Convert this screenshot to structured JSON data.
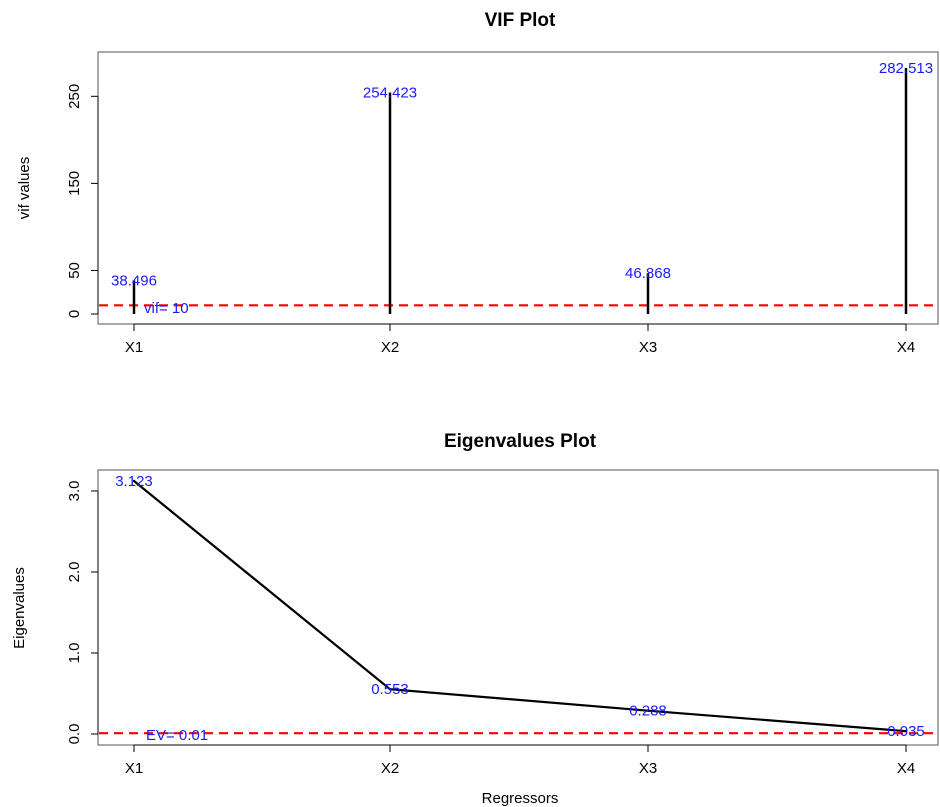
{
  "chart_data": [
    {
      "type": "bar",
      "title": "VIF Plot",
      "xlabel": "",
      "ylabel": "vif values",
      "categories": [
        "X1",
        "X2",
        "X3",
        "X4"
      ],
      "values": [
        38.496,
        254.423,
        46.868,
        282.513
      ],
      "labels": [
        "38.496",
        "254.423",
        "46.868",
        "282.513"
      ],
      "ylim": [
        0,
        282.513
      ],
      "yticks": [
        0,
        50,
        150,
        250
      ],
      "ytick_labels": [
        "0",
        "50",
        "150",
        "250"
      ],
      "reference": {
        "value": 10,
        "label": "vif= 10",
        "color": "#ff0000",
        "style": "dashed"
      },
      "bar_color": "#000000",
      "label_color": "#1a1aff"
    },
    {
      "type": "line",
      "title": "Eigenvalues Plot",
      "xlabel": "Regressors",
      "ylabel": "Eigenvalues",
      "categories": [
        "X1",
        "X2",
        "X3",
        "X4"
      ],
      "values": [
        3.123,
        0.553,
        0.288,
        0.035
      ],
      "labels": [
        "3.123",
        "0.553",
        "0.288",
        "0.035"
      ],
      "ylim": [
        0,
        3.123
      ],
      "yticks": [
        0,
        1,
        2,
        3
      ],
      "ytick_labels": [
        "0.0",
        "1.0",
        "2.0",
        "3.0"
      ],
      "reference": {
        "value": 0.01,
        "label": "EV= 0.01",
        "color": "#ff0000",
        "style": "dashed"
      },
      "line_color": "#000000",
      "label_color": "#1a1aff"
    }
  ]
}
